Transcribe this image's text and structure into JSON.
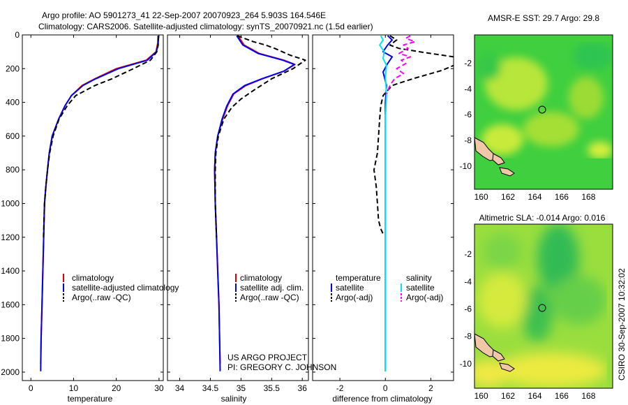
{
  "header": {
    "line1": "Argo profile: AO 5901273_41 22-Sep-2007 20070923_264 5.903S 164.546E",
    "line2": "Climatology: CARS2006. Satellite-adjusted climatology: synTS_20070921.nc (1.5d earlier)"
  },
  "credit": "CSIRO 30-Sep-2007 10:32:02",
  "project": {
    "line1": "US ARGO PROJECT",
    "line2": "PI: GREGORY C. JOHNSON"
  },
  "colors": {
    "climatology": "#e00000",
    "satellite": "#0000ee",
    "argo": "#000000",
    "salinity_satellite": "#00e5ee",
    "salinity_argo": "#ff00ff"
  },
  "chart_data": [
    {
      "type": "line",
      "xlabel": "temperature",
      "ylabel": "",
      "xlim": [
        -2,
        31
      ],
      "ylim": [
        2050,
        0
      ],
      "y_reversed": true,
      "x_ticks": [
        0,
        10,
        20,
        30
      ],
      "y_ticks": [
        0,
        200,
        400,
        600,
        800,
        1000,
        1200,
        1400,
        1600,
        1800,
        2000
      ],
      "legend": [
        "climatology",
        "satellite-adjusted climatology",
        "Argo(..raw -QC)"
      ],
      "series": [
        {
          "name": "climatology",
          "color": "#e00000",
          "dash": "solid",
          "points": [
            [
              29.8,
              5
            ],
            [
              29.7,
              50
            ],
            [
              29.3,
              100
            ],
            [
              27,
              150
            ],
            [
              20,
              200
            ],
            [
              15,
              260
            ],
            [
              12,
              300
            ],
            [
              9.5,
              360
            ],
            [
              8,
              420
            ],
            [
              6.5,
              500
            ],
            [
              5,
              600
            ],
            [
              4.3,
              700
            ],
            [
              3.9,
              800
            ],
            [
              3.5,
              900
            ],
            [
              3.2,
              1000
            ],
            [
              3,
              1200
            ],
            [
              2.8,
              1400
            ],
            [
              2.6,
              1600
            ],
            [
              2.4,
              1800
            ],
            [
              2.3,
              1950
            ]
          ]
        },
        {
          "name": "satellite-adjusted climatology",
          "color": "#0000ee",
          "dash": "solid",
          "points": [
            [
              29.9,
              5
            ],
            [
              29.8,
              50
            ],
            [
              29.4,
              100
            ],
            [
              27.3,
              150
            ],
            [
              20.5,
              200
            ],
            [
              15.2,
              260
            ],
            [
              12.2,
              300
            ],
            [
              9.5,
              360
            ],
            [
              8,
              420
            ],
            [
              6.5,
              500
            ],
            [
              5,
              600
            ],
            [
              4.3,
              700
            ],
            [
              3.9,
              800
            ],
            [
              3.5,
              900
            ],
            [
              3.2,
              1000
            ],
            [
              3,
              1200
            ],
            [
              2.8,
              1400
            ],
            [
              2.6,
              1600
            ],
            [
              2.4,
              1800
            ],
            [
              2.3,
              1995
            ]
          ]
        },
        {
          "name": "Argo(..raw -QC)",
          "color": "#000000",
          "dash": "dashed",
          "points": [
            [
              29.8,
              5
            ],
            [
              29.8,
              60
            ],
            [
              29.5,
              100
            ],
            [
              28,
              150
            ],
            [
              24,
              200
            ],
            [
              19,
              260
            ],
            [
              15,
              300
            ],
            [
              10.5,
              360
            ],
            [
              8.5,
              420
            ],
            [
              6.6,
              500
            ],
            [
              5.2,
              600
            ],
            [
              4.4,
              700
            ],
            [
              3.9,
              800
            ],
            [
              3.5,
              900
            ],
            [
              3.2,
              1000
            ],
            [
              2.95,
              1200
            ]
          ]
        }
      ]
    },
    {
      "type": "line",
      "xlabel": "salinity",
      "ylabel": "",
      "xlim": [
        33.8,
        36.1
      ],
      "ylim": [
        2050,
        0
      ],
      "y_reversed": true,
      "x_ticks": [
        34,
        34.5,
        35,
        35.5,
        36
      ],
      "x_tick_labels": [
        "34",
        "34.5",
        "35",
        "35.5",
        "36"
      ],
      "legend": [
        "climatology",
        "satellite adj. clim.",
        "Argo(..raw -QC)"
      ],
      "series": [
        {
          "name": "climatology",
          "color": "#e00000",
          "dash": "solid",
          "points": [
            [
              34.95,
              5
            ],
            [
              35.05,
              60
            ],
            [
              35.3,
              110
            ],
            [
              35.7,
              150
            ],
            [
              35.88,
              175
            ],
            [
              35.7,
              215
            ],
            [
              35.35,
              260
            ],
            [
              35.08,
              300
            ],
            [
              34.88,
              350
            ],
            [
              34.78,
              420
            ],
            [
              34.7,
              500
            ],
            [
              34.62,
              600
            ],
            [
              34.58,
              700
            ],
            [
              34.57,
              800
            ],
            [
              34.58,
              1000
            ],
            [
              34.6,
              1200
            ],
            [
              34.62,
              1400
            ],
            [
              34.64,
              1600
            ],
            [
              34.65,
              1800
            ],
            [
              34.66,
              1950
            ]
          ]
        },
        {
          "name": "satellite adj. clim.",
          "color": "#0000ee",
          "dash": "solid",
          "points": [
            [
              34.93,
              5
            ],
            [
              35.03,
              60
            ],
            [
              35.28,
              110
            ],
            [
              35.68,
              150
            ],
            [
              35.87,
              175
            ],
            [
              35.7,
              215
            ],
            [
              35.34,
              260
            ],
            [
              35.06,
              300
            ],
            [
              34.87,
              350
            ],
            [
              34.77,
              420
            ],
            [
              34.69,
              500
            ],
            [
              34.62,
              600
            ],
            [
              34.58,
              700
            ],
            [
              34.57,
              800
            ],
            [
              34.58,
              1000
            ],
            [
              34.6,
              1200
            ],
            [
              34.62,
              1400
            ],
            [
              34.64,
              1600
            ],
            [
              34.65,
              1800
            ],
            [
              34.66,
              1995
            ]
          ]
        },
        {
          "name": "Argo(..raw -QC)",
          "color": "#000000",
          "dash": "dashed",
          "points": [
            [
              34.94,
              5
            ],
            [
              35.2,
              40
            ],
            [
              35.4,
              60
            ],
            [
              35.55,
              80
            ],
            [
              35.8,
              120
            ],
            [
              36.05,
              150
            ],
            [
              35.85,
              200
            ],
            [
              35.5,
              260
            ],
            [
              35.2,
              330
            ],
            [
              35.0,
              380
            ],
            [
              34.85,
              430
            ],
            [
              34.72,
              500
            ],
            [
              34.63,
              600
            ],
            [
              34.59,
              700
            ],
            [
              34.58,
              800
            ],
            [
              34.58,
              1000
            ],
            [
              34.6,
              1200
            ]
          ]
        }
      ]
    },
    {
      "type": "line",
      "xlabel": "difference from climatology",
      "ylabel": "",
      "xlim": [
        -3.2,
        3.0
      ],
      "ylim": [
        2050,
        0
      ],
      "y_reversed": true,
      "x_ticks": [
        -2,
        0,
        2
      ],
      "legend_columns": [
        {
          "heading": "temperature",
          "entries": [
            "satellite",
            "Argo(-adj)"
          ]
        },
        {
          "heading": "salinity",
          "entries": [
            "satellite",
            "Argo(-adj)"
          ]
        }
      ],
      "series": [
        {
          "name": "temperature satellite",
          "color": "#0000ee",
          "dash": "solid",
          "points": [
            [
              0.1,
              5
            ],
            [
              0.3,
              30
            ],
            [
              0.1,
              60
            ],
            [
              -0.1,
              100
            ],
            [
              0.3,
              130
            ],
            [
              0.1,
              170
            ],
            [
              -0.1,
              220
            ],
            [
              0.05,
              300
            ],
            [
              0,
              400
            ],
            [
              0,
              600
            ],
            [
              0,
              1000
            ],
            [
              0,
              1400
            ],
            [
              0,
              1995
            ]
          ]
        },
        {
          "name": "temperature Argo(-adj)",
          "color": "#000000",
          "dash": "dashed",
          "points": [
            [
              0.2,
              5
            ],
            [
              0.5,
              30
            ],
            [
              0.2,
              60
            ],
            [
              0.6,
              80
            ],
            [
              1.5,
              100
            ],
            [
              3.0,
              130
            ],
            [
              3.2,
              170
            ],
            [
              2.5,
              210
            ],
            [
              1.2,
              260
            ],
            [
              0.3,
              300
            ],
            [
              -0.1,
              360
            ],
            [
              -0.2,
              420
            ],
            [
              -0.25,
              500
            ],
            [
              -0.3,
              600
            ],
            [
              -0.35,
              700
            ],
            [
              -0.5,
              800
            ],
            [
              -0.4,
              900
            ],
            [
              -0.35,
              1000
            ],
            [
              -0.3,
              1100
            ],
            [
              -0.2,
              1150
            ],
            [
              -0.1,
              1180
            ]
          ]
        },
        {
          "name": "salinity satellite",
          "color": "#00e5ee",
          "dash": "solid",
          "points": [
            [
              -0.2,
              5
            ],
            [
              -0.1,
              30
            ],
            [
              -0.25,
              60
            ],
            [
              -0.05,
              100
            ],
            [
              -0.1,
              140
            ],
            [
              0.05,
              180
            ],
            [
              0,
              250
            ],
            [
              0.05,
              350
            ],
            [
              0,
              500
            ],
            [
              0,
              800
            ],
            [
              0,
              1200
            ],
            [
              0,
              1600
            ],
            [
              0,
              1995
            ]
          ]
        },
        {
          "name": "salinity Argo(-adj)",
          "color": "#ff00ff",
          "dash": "dashed",
          "points": [
            [
              1.1,
              5
            ],
            [
              0.9,
              20
            ],
            [
              1.3,
              40
            ],
            [
              0.8,
              60
            ],
            [
              1.0,
              80
            ],
            [
              0.6,
              110
            ],
            [
              1.1,
              130
            ],
            [
              0.7,
              150
            ],
            [
              0.9,
              170
            ],
            [
              0.5,
              200
            ],
            [
              0.8,
              230
            ],
            [
              0.4,
              260
            ],
            [
              0.2,
              300
            ],
            [
              0.05,
              350
            ]
          ]
        }
      ]
    },
    {
      "type": "heatmap",
      "title": "AMSR-E SST: 29.7 Argo: 29.8",
      "xlim": [
        159.5,
        169.8
      ],
      "ylim": [
        -11.8,
        0.2
      ],
      "x_ticks": [
        160,
        162,
        164,
        166,
        168
      ],
      "y_ticks": [
        -2,
        -4,
        -6,
        -8,
        -10
      ],
      "marker": {
        "lon": 164.546,
        "lat": -5.903
      }
    },
    {
      "type": "heatmap",
      "title": "Altimetric SLA: -0.014 Argo: 0.016",
      "xlim": [
        159.5,
        169.8
      ],
      "ylim": [
        -11.8,
        0.2
      ],
      "x_ticks": [
        160,
        162,
        164,
        166,
        168
      ],
      "y_ticks": [
        -2,
        -4,
        -6,
        -8,
        -10
      ],
      "marker": {
        "lon": 164.546,
        "lat": -5.903
      }
    }
  ]
}
